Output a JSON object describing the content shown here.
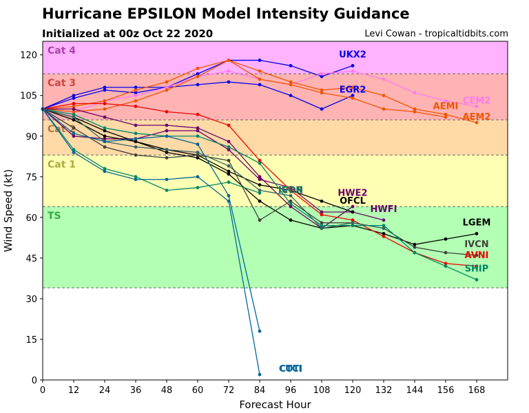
{
  "header": {
    "title": "Hurricane EPSILON Model Intensity Guidance",
    "subtitle": "Initialized at 00z Oct 22 2020",
    "credit": "Levi Cowan - tropicaltidbits.com"
  },
  "chart_data": {
    "type": "line",
    "xlabel": "Forecast Hour",
    "ylabel": "Wind Speed (kt)",
    "xlim": [
      0,
      180
    ],
    "ylim": [
      0,
      125
    ],
    "xticks": [
      0,
      12,
      24,
      36,
      48,
      60,
      72,
      84,
      96,
      108,
      120,
      132,
      144,
      156,
      168
    ],
    "yticks": [
      0,
      15,
      30,
      45,
      60,
      75,
      90,
      105,
      120
    ],
    "bands": [
      {
        "label": "TS",
        "from": 34,
        "to": 64,
        "color": "#b3ffb3",
        "label_color": "#33aa44"
      },
      {
        "label": "Cat 1",
        "from": 64,
        "to": 83,
        "color": "#ffffb3",
        "label_color": "#aaaa44"
      },
      {
        "label": "Cat 2",
        "from": 83,
        "to": 96,
        "color": "#ffd9a6",
        "label_color": "#aa7744"
      },
      {
        "label": "Cat 3",
        "from": 96,
        "to": 113,
        "color": "#ffb3b3",
        "label_color": "#cc4444"
      },
      {
        "label": "Cat 4",
        "from": 113,
        "to": 125,
        "color": "#ffb3ff",
        "label_color": "#aa44aa"
      }
    ],
    "series": [
      {
        "name": "UKX2",
        "color": "#0000ee",
        "label_pos": [
          120,
          118
        ],
        "x": [
          0,
          12,
          24,
          36,
          48,
          60,
          72,
          84,
          96,
          108,
          120
        ],
        "y": [
          100,
          104,
          107,
          106,
          108,
          113,
          118,
          118,
          116,
          112,
          116
        ]
      },
      {
        "name": "EGR2",
        "color": "#0000ee",
        "label_pos": [
          120,
          105
        ],
        "x": [
          0,
          12,
          24,
          36,
          48,
          60,
          72,
          84,
          96,
          108,
          120
        ],
        "y": [
          100,
          105,
          108,
          108,
          108,
          109,
          110,
          109,
          105,
          100,
          105
        ]
      },
      {
        "name": "CEM2",
        "color": "#ff77ee",
        "label_pos": [
          168,
          101
        ],
        "x": [
          0,
          12,
          24,
          36,
          48,
          60,
          72,
          84,
          96,
          108,
          120,
          132,
          144,
          156,
          168
        ],
        "y": [
          100,
          99,
          103,
          105,
          108,
          112,
          114,
          111,
          109,
          113,
          114,
          111,
          106,
          103,
          101
        ]
      },
      {
        "name": "AEMI",
        "color": "#ee5500",
        "label_pos": [
          156,
          99
        ],
        "x": [
          0,
          12,
          24,
          36,
          48,
          60,
          72,
          84,
          96,
          108,
          120,
          132,
          144,
          156
        ],
        "y": [
          100,
          99,
          100,
          103,
          107,
          112,
          118,
          111,
          109,
          106,
          104,
          100,
          99,
          97
        ]
      },
      {
        "name": "AEM2",
        "color": "#ee5500",
        "label_pos": [
          168,
          95
        ],
        "x": [
          0,
          12,
          24,
          36,
          48,
          60,
          72,
          84,
          96,
          108,
          120,
          132,
          144,
          156,
          168
        ],
        "y": [
          100,
          101,
          103,
          107,
          110,
          115,
          118,
          114,
          110,
          107,
          108,
          105,
          100,
          98,
          95
        ]
      },
      {
        "name": "HWE2",
        "color": "#6a006a",
        "label_pos": [
          120,
          67
        ],
        "x": [
          0,
          12,
          24,
          36,
          48,
          60,
          72,
          84,
          96,
          108,
          120
        ],
        "y": [
          100,
          100,
          97,
          94,
          94,
          93,
          88,
          75,
          64,
          56,
          64
        ]
      },
      {
        "name": "HWFI",
        "color": "#6a006a",
        "label_pos": [
          132,
          61
        ],
        "x": [
          0,
          12,
          24,
          36,
          48,
          60,
          72,
          84,
          96,
          108,
          120,
          132
        ],
        "y": [
          100,
          90,
          89,
          89,
          92,
          92,
          85,
          74,
          71,
          62,
          62,
          59
        ]
      },
      {
        "name": "OFCL",
        "color": "#000000",
        "label_pos": [
          120,
          64
        ],
        "x": [
          0,
          12,
          24,
          36,
          48,
          60,
          72,
          84,
          96,
          108,
          120
        ],
        "y": [
          100,
          96,
          90,
          88,
          85,
          83,
          77,
          72,
          70,
          66,
          62
        ]
      },
      {
        "name": "LGEM",
        "color": "#000000",
        "label_pos": [
          168,
          56
        ],
        "x": [
          0,
          12,
          24,
          36,
          48,
          60,
          72,
          84,
          96,
          108,
          120,
          132,
          144,
          156,
          168
        ],
        "y": [
          100,
          97,
          92,
          88,
          84,
          82,
          76,
          66,
          59,
          56,
          57,
          54,
          50,
          52,
          54
        ]
      },
      {
        "name": "IVCN",
        "color": "#404040",
        "label_pos": [
          168,
          48
        ],
        "x": [
          0,
          12,
          24,
          36,
          48,
          60,
          72,
          84,
          96,
          108,
          120,
          132,
          144,
          156,
          168
        ],
        "y": [
          100,
          93,
          86,
          83,
          82,
          83,
          81,
          59,
          66,
          58,
          58,
          56,
          49,
          47,
          46
        ]
      },
      {
        "name": "AVNI",
        "color": "#ee0000",
        "label_pos": [
          168,
          44
        ],
        "x": [
          0,
          12,
          24,
          36,
          48,
          60,
          72,
          84,
          96,
          108,
          120,
          132,
          144,
          156,
          168
        ],
        "y": [
          100,
          102,
          102,
          101,
          99,
          98,
          94,
          81,
          70,
          61,
          59,
          53,
          47,
          43,
          42
        ]
      },
      {
        "name": "SHIP",
        "color": "#008866",
        "label_pos": [
          168,
          39
        ],
        "x": [
          0,
          12,
          24,
          36,
          48,
          60,
          72,
          84,
          96,
          108,
          120,
          132,
          144,
          156,
          168
        ],
        "y": [
          100,
          98,
          93,
          91,
          90,
          90,
          86,
          80,
          65,
          57,
          57,
          57,
          47,
          42,
          37
        ]
      },
      {
        "name": "ICON",
        "color": "#008866",
        "label_pos": [
          96,
          68
        ],
        "x": [
          0,
          12,
          24,
          36,
          48,
          60,
          72,
          84
        ],
        "y": [
          100,
          85,
          78,
          75,
          70,
          71,
          73,
          69
        ]
      },
      {
        "name": "IVDR",
        "color": "#336666",
        "label_pos": [
          96,
          68
        ],
        "x": [
          0,
          12,
          24,
          36,
          48,
          60,
          72,
          84,
          96,
          108,
          120,
          132
        ],
        "y": [
          100,
          97,
          88,
          86,
          85,
          84,
          79,
          70,
          68,
          56,
          58,
          56
        ]
      },
      {
        "name": "CTCI",
        "color": "#006699",
        "label_pos": [
          96,
          2
        ],
        "x": [
          0,
          12,
          24,
          36,
          48,
          60,
          72,
          84
        ],
        "y": [
          100,
          84,
          77,
          74,
          74,
          75,
          66,
          2
        ]
      },
      {
        "name": "COTI",
        "color": "#006699",
        "label_pos": [
          96,
          2
        ],
        "x": [
          0,
          12,
          24,
          36,
          48,
          60,
          72,
          84
        ],
        "y": [
          100,
          91,
          88,
          89,
          90,
          87,
          68,
          18
        ]
      }
    ]
  }
}
